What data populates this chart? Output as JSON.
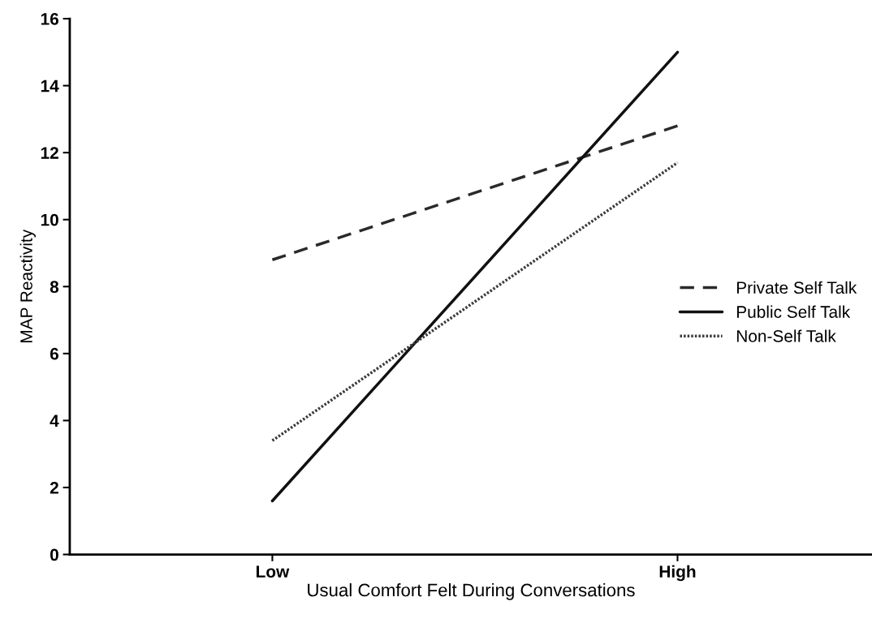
{
  "chart_data": {
    "type": "line",
    "xlabel": "Usual Comfort Felt During Conversations",
    "ylabel": "MAP Reactivity",
    "categories": [
      "Low",
      "High"
    ],
    "series": [
      {
        "name": "Private Self Talk",
        "color": "#2a2a2a",
        "line_style": "dashed",
        "values": [
          8.8,
          12.8
        ]
      },
      {
        "name": "Public Self Talk",
        "color": "#111111",
        "line_style": "solid",
        "values": [
          1.6,
          15.0
        ]
      },
      {
        "name": "Non-Self Talk",
        "color": "#3c3c3c",
        "line_style": "dotted",
        "values": [
          3.4,
          11.7
        ]
      }
    ],
    "ylim": [
      0,
      16
    ],
    "yticks": [
      0,
      2,
      4,
      6,
      8,
      10,
      12,
      14,
      16
    ],
    "grid": false,
    "legend": "right",
    "marker": "none"
  }
}
